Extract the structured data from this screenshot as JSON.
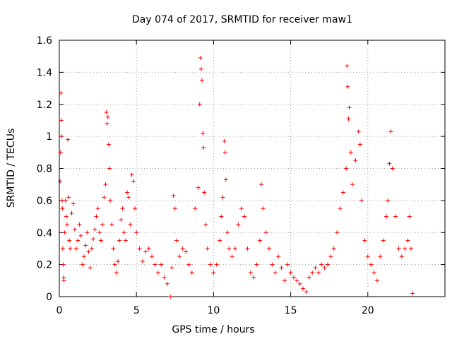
{
  "chart_data": {
    "type": "scatter",
    "title": "Day 074 of 2017, SRMTID for receiver maw1",
    "xlabel": "GPS time / hours",
    "ylabel": "SRMTID / TECUs",
    "xlim": [
      0,
      25
    ],
    "ylim": [
      0,
      1.6
    ],
    "xticks": [
      0,
      5,
      10,
      15,
      20
    ],
    "xtick_labels": [
      "0",
      "5",
      "10",
      "15",
      "20"
    ],
    "yticks": [
      0,
      0.2,
      0.4,
      0.6,
      0.8,
      1.0,
      1.2,
      1.4,
      1.6
    ],
    "ytick_labels": [
      "0",
      "0.2",
      "0.4",
      "0.6",
      "0.8",
      "1",
      "1.2",
      "1.4",
      "1.6"
    ],
    "grid": true,
    "marker": "+",
    "color": "#ff0000",
    "series": [
      {
        "name": "maw1",
        "points": [
          [
            0.05,
            0.72
          ],
          [
            0.08,
            0.9
          ],
          [
            0.1,
            1.27
          ],
          [
            0.12,
            1.1
          ],
          [
            0.15,
            1.0
          ],
          [
            0.18,
            0.6
          ],
          [
            0.2,
            0.55
          ],
          [
            0.22,
            0.3
          ],
          [
            0.25,
            0.2
          ],
          [
            0.28,
            0.12
          ],
          [
            0.3,
            0.1
          ],
          [
            0.35,
            0.4
          ],
          [
            0.4,
            0.6
          ],
          [
            0.45,
            0.5
          ],
          [
            0.5,
            0.45
          ],
          [
            0.55,
            0.98
          ],
          [
            0.6,
            0.62
          ],
          [
            0.65,
            0.35
          ],
          [
            0.7,
            0.3
          ],
          [
            0.8,
            0.52
          ],
          [
            0.9,
            0.58
          ],
          [
            1.0,
            0.42
          ],
          [
            1.1,
            0.3
          ],
          [
            1.2,
            0.35
          ],
          [
            1.3,
            0.45
          ],
          [
            1.4,
            0.38
          ],
          [
            1.5,
            0.2
          ],
          [
            1.6,
            0.25
          ],
          [
            1.7,
            0.32
          ],
          [
            1.8,
            0.4
          ],
          [
            1.9,
            0.28
          ],
          [
            2.0,
            0.18
          ],
          [
            2.1,
            0.3
          ],
          [
            2.2,
            0.36
          ],
          [
            2.3,
            0.42
          ],
          [
            2.4,
            0.5
          ],
          [
            2.5,
            0.55
          ],
          [
            2.6,
            0.4
          ],
          [
            2.7,
            0.35
          ],
          [
            2.8,
            0.45
          ],
          [
            2.9,
            0.62
          ],
          [
            3.0,
            0.7
          ],
          [
            3.05,
            1.15
          ],
          [
            3.1,
            1.08
          ],
          [
            3.15,
            1.12
          ],
          [
            3.2,
            0.95
          ],
          [
            3.25,
            0.8
          ],
          [
            3.3,
            0.6
          ],
          [
            3.4,
            0.45
          ],
          [
            3.5,
            0.3
          ],
          [
            3.6,
            0.2
          ],
          [
            3.7,
            0.15
          ],
          [
            3.8,
            0.22
          ],
          [
            3.9,
            0.35
          ],
          [
            4.0,
            0.48
          ],
          [
            4.1,
            0.55
          ],
          [
            4.2,
            0.4
          ],
          [
            4.3,
            0.35
          ],
          [
            4.4,
            0.65
          ],
          [
            4.5,
            0.62
          ],
          [
            4.6,
            0.45
          ],
          [
            4.7,
            0.76
          ],
          [
            4.8,
            0.72
          ],
          [
            4.9,
            0.55
          ],
          [
            5.0,
            0.4
          ],
          [
            5.2,
            0.3
          ],
          [
            5.4,
            0.22
          ],
          [
            5.6,
            0.28
          ],
          [
            5.8,
            0.3
          ],
          [
            6.0,
            0.25
          ],
          [
            6.2,
            0.2
          ],
          [
            6.4,
            0.15
          ],
          [
            6.6,
            0.2
          ],
          [
            6.8,
            0.12
          ],
          [
            7.0,
            0.08
          ],
          [
            7.2,
            0.0
          ],
          [
            7.3,
            0.18
          ],
          [
            7.4,
            0.63
          ],
          [
            7.5,
            0.55
          ],
          [
            7.6,
            0.35
          ],
          [
            7.8,
            0.25
          ],
          [
            8.0,
            0.3
          ],
          [
            8.2,
            0.28
          ],
          [
            8.4,
            0.2
          ],
          [
            8.6,
            0.15
          ],
          [
            8.8,
            0.55
          ],
          [
            9.0,
            0.68
          ],
          [
            9.1,
            1.2
          ],
          [
            9.15,
            1.49
          ],
          [
            9.2,
            1.42
          ],
          [
            9.25,
            1.35
          ],
          [
            9.3,
            1.02
          ],
          [
            9.35,
            0.93
          ],
          [
            9.4,
            0.65
          ],
          [
            9.5,
            0.45
          ],
          [
            9.6,
            0.3
          ],
          [
            9.8,
            0.2
          ],
          [
            10.0,
            0.15
          ],
          [
            10.2,
            0.2
          ],
          [
            10.4,
            0.35
          ],
          [
            10.5,
            0.5
          ],
          [
            10.6,
            0.62
          ],
          [
            10.7,
            0.97
          ],
          [
            10.75,
            0.9
          ],
          [
            10.8,
            0.73
          ],
          [
            10.9,
            0.4
          ],
          [
            11.0,
            0.3
          ],
          [
            11.2,
            0.25
          ],
          [
            11.4,
            0.3
          ],
          [
            11.6,
            0.45
          ],
          [
            11.8,
            0.55
          ],
          [
            12.0,
            0.5
          ],
          [
            12.2,
            0.3
          ],
          [
            12.4,
            0.15
          ],
          [
            12.6,
            0.12
          ],
          [
            12.8,
            0.2
          ],
          [
            13.0,
            0.35
          ],
          [
            13.1,
            0.7
          ],
          [
            13.2,
            0.55
          ],
          [
            13.4,
            0.4
          ],
          [
            13.6,
            0.3
          ],
          [
            13.8,
            0.2
          ],
          [
            14.0,
            0.15
          ],
          [
            14.2,
            0.25
          ],
          [
            14.4,
            0.18
          ],
          [
            14.6,
            0.1
          ],
          [
            14.8,
            0.2
          ],
          [
            15.0,
            0.15
          ],
          [
            15.2,
            0.12
          ],
          [
            15.4,
            0.1
          ],
          [
            15.6,
            0.08
          ],
          [
            15.8,
            0.05
          ],
          [
            16.0,
            0.03
          ],
          [
            16.2,
            0.12
          ],
          [
            16.4,
            0.15
          ],
          [
            16.6,
            0.18
          ],
          [
            16.8,
            0.15
          ],
          [
            17.0,
            0.2
          ],
          [
            17.2,
            0.18
          ],
          [
            17.4,
            0.2
          ],
          [
            17.6,
            0.25
          ],
          [
            17.8,
            0.3
          ],
          [
            18.0,
            0.4
          ],
          [
            18.2,
            0.55
          ],
          [
            18.4,
            0.65
          ],
          [
            18.6,
            0.8
          ],
          [
            18.65,
            1.44
          ],
          [
            18.7,
            1.31
          ],
          [
            18.75,
            1.11
          ],
          [
            18.8,
            1.18
          ],
          [
            18.9,
            0.9
          ],
          [
            19.0,
            0.7
          ],
          [
            19.2,
            0.85
          ],
          [
            19.4,
            1.03
          ],
          [
            19.5,
            0.95
          ],
          [
            19.6,
            0.6
          ],
          [
            19.8,
            0.35
          ],
          [
            20.0,
            0.25
          ],
          [
            20.2,
            0.2
          ],
          [
            20.4,
            0.15
          ],
          [
            20.6,
            0.1
          ],
          [
            20.8,
            0.25
          ],
          [
            21.0,
            0.35
          ],
          [
            21.2,
            0.5
          ],
          [
            21.3,
            0.6
          ],
          [
            21.4,
            0.83
          ],
          [
            21.5,
            1.03
          ],
          [
            21.6,
            0.8
          ],
          [
            21.8,
            0.5
          ],
          [
            22.0,
            0.3
          ],
          [
            22.2,
            0.25
          ],
          [
            22.4,
            0.3
          ],
          [
            22.6,
            0.35
          ],
          [
            22.7,
            0.5
          ],
          [
            22.8,
            0.3
          ],
          [
            22.9,
            0.02
          ]
        ]
      }
    ]
  }
}
